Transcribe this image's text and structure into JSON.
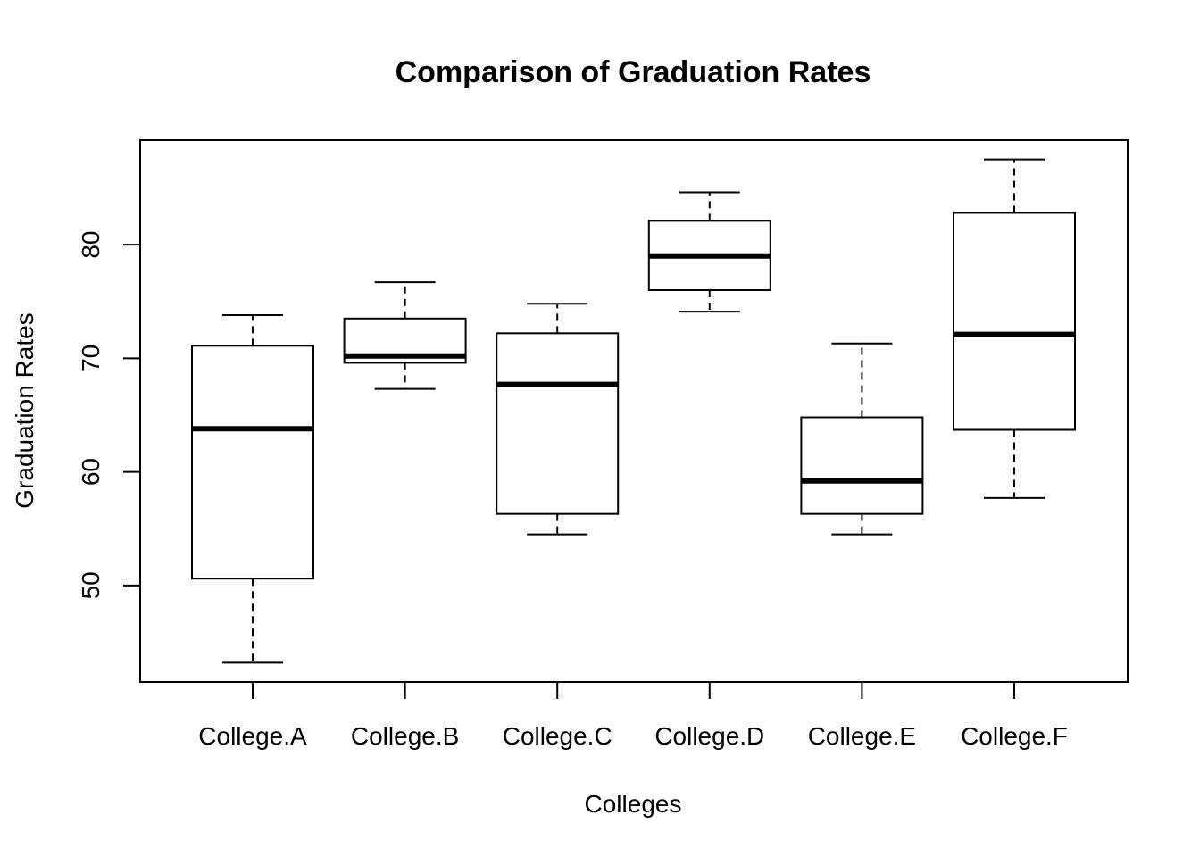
{
  "chart_data": {
    "type": "boxplot",
    "title": "Comparison of Graduation Rates",
    "xlabel": "Colleges",
    "ylabel": "Graduation Rates",
    "ylim": [
      41.5,
      89.2
    ],
    "yticks": [
      50,
      60,
      70,
      80
    ],
    "grid": false,
    "categories": [
      "College.A",
      "College.B",
      "College.C",
      "College.D",
      "College.E",
      "College.F"
    ],
    "boxes": [
      {
        "name": "College.A",
        "min": 43.2,
        "q1": 50.6,
        "median": 63.8,
        "q3": 71.1,
        "max": 73.8
      },
      {
        "name": "College.B",
        "min": 67.3,
        "q1": 69.6,
        "median": 70.2,
        "q3": 73.5,
        "max": 76.7
      },
      {
        "name": "College.C",
        "min": 54.5,
        "q1": 56.3,
        "median": 67.7,
        "q3": 72.2,
        "max": 74.8
      },
      {
        "name": "College.D",
        "min": 74.1,
        "q1": 76.0,
        "median": 79.0,
        "q3": 82.1,
        "max": 84.6
      },
      {
        "name": "College.E",
        "min": 54.5,
        "q1": 56.3,
        "median": 59.2,
        "q3": 64.8,
        "max": 71.3
      },
      {
        "name": "College.F",
        "min": 57.7,
        "q1": 63.7,
        "median": 72.1,
        "q3": 82.8,
        "max": 87.5
      }
    ]
  }
}
